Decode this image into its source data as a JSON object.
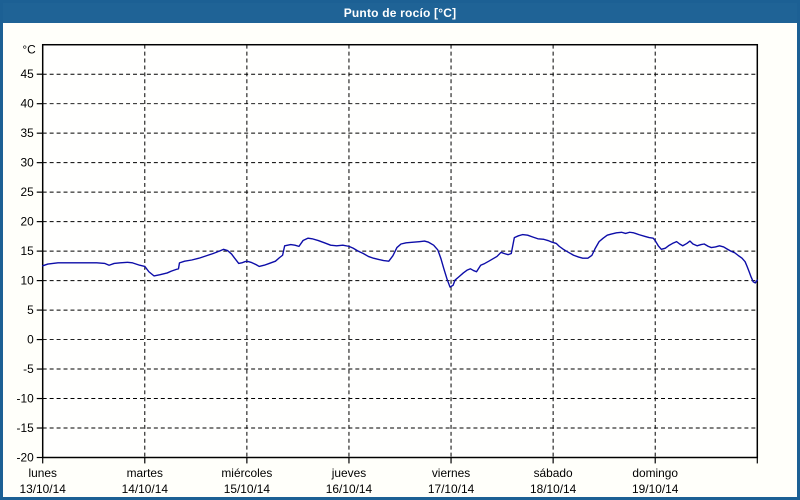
{
  "window": {
    "title": "Punto de rocío [°C]"
  },
  "colors": {
    "titlebar_bg": "#1f6396",
    "window_border": "#1c6094",
    "content_bg": "#fffffa",
    "plot_bg": "#fffffe",
    "grid": "#000000",
    "axis": "#000000",
    "tick_label": "#000000",
    "title_text": "#ffffff",
    "line": "#0d0da8"
  },
  "chart_data": {
    "type": "line",
    "title": "Punto de rocío [°C]",
    "ylabel": "°C",
    "xlabel": "",
    "ylim": [
      -20,
      50
    ],
    "yticks": [
      45,
      40,
      35,
      30,
      25,
      20,
      15,
      10,
      5,
      0,
      -5,
      -10,
      -15,
      -20
    ],
    "grid": "dashed horizontal and vertical (at day boundaries)",
    "legend_position": "none",
    "x_axis_unit": "days",
    "x_categories": [
      {
        "day": "lunes",
        "date": "13/10/14"
      },
      {
        "day": "martes",
        "date": "14/10/14"
      },
      {
        "day": "miércoles",
        "date": "15/10/14"
      },
      {
        "day": "jueves",
        "date": "16/10/14"
      },
      {
        "day": "viernes",
        "date": "17/10/14"
      },
      {
        "day": "sábado",
        "date": "18/10/14"
      },
      {
        "day": "domingo",
        "date": "19/10/14"
      }
    ],
    "series": [
      {
        "name": "Punto de rocío [°C]",
        "color": "#0d0da8",
        "x_unit": "day offset from 13/10/14 00:00",
        "points": [
          [
            0.0,
            12.5
          ],
          [
            0.05,
            12.8
          ],
          [
            0.15,
            13.0
          ],
          [
            0.34,
            13.0
          ],
          [
            0.53,
            13.0
          ],
          [
            0.61,
            12.9
          ],
          [
            0.65,
            12.6
          ],
          [
            0.7,
            12.9
          ],
          [
            0.76,
            13.0
          ],
          [
            0.83,
            13.1
          ],
          [
            0.88,
            13.0
          ],
          [
            0.95,
            12.6
          ],
          [
            1.0,
            12.4
          ],
          [
            1.04,
            11.5
          ],
          [
            1.09,
            10.8
          ],
          [
            1.15,
            11.0
          ],
          [
            1.22,
            11.3
          ],
          [
            1.26,
            11.6
          ],
          [
            1.31,
            11.9
          ],
          [
            1.33,
            12.0
          ],
          [
            1.34,
            13.0
          ],
          [
            1.39,
            13.3
          ],
          [
            1.46,
            13.5
          ],
          [
            1.53,
            13.8
          ],
          [
            1.6,
            14.2
          ],
          [
            1.67,
            14.6
          ],
          [
            1.73,
            15.0
          ],
          [
            1.77,
            15.3
          ],
          [
            1.81,
            15.1
          ],
          [
            1.85,
            14.5
          ],
          [
            1.88,
            13.8
          ],
          [
            1.92,
            12.9
          ],
          [
            1.95,
            13.0
          ],
          [
            1.98,
            13.2
          ],
          [
            2.0,
            13.3
          ],
          [
            2.04,
            13.1
          ],
          [
            2.09,
            12.7
          ],
          [
            2.12,
            12.4
          ],
          [
            2.17,
            12.6
          ],
          [
            2.22,
            12.9
          ],
          [
            2.28,
            13.3
          ],
          [
            2.32,
            13.9
          ],
          [
            2.35,
            14.3
          ],
          [
            2.37,
            15.9
          ],
          [
            2.43,
            16.1
          ],
          [
            2.47,
            16.0
          ],
          [
            2.51,
            15.8
          ],
          [
            2.55,
            16.8
          ],
          [
            2.6,
            17.2
          ],
          [
            2.64,
            17.1
          ],
          [
            2.7,
            16.8
          ],
          [
            2.76,
            16.4
          ],
          [
            2.82,
            16.0
          ],
          [
            2.88,
            15.9
          ],
          [
            2.94,
            16.0
          ],
          [
            3.0,
            15.8
          ],
          [
            3.04,
            15.5
          ],
          [
            3.09,
            15.0
          ],
          [
            3.14,
            14.6
          ],
          [
            3.19,
            14.1
          ],
          [
            3.24,
            13.8
          ],
          [
            3.29,
            13.6
          ],
          [
            3.34,
            13.4
          ],
          [
            3.39,
            13.3
          ],
          [
            3.43,
            14.2
          ],
          [
            3.47,
            15.6
          ],
          [
            3.51,
            16.2
          ],
          [
            3.56,
            16.4
          ],
          [
            3.63,
            16.5
          ],
          [
            3.69,
            16.6
          ],
          [
            3.74,
            16.7
          ],
          [
            3.78,
            16.5
          ],
          [
            3.83,
            16.0
          ],
          [
            3.87,
            15.2
          ],
          [
            3.9,
            13.8
          ],
          [
            3.93,
            12.0
          ],
          [
            3.96,
            10.3
          ],
          [
            3.99,
            8.9
          ],
          [
            4.02,
            9.2
          ],
          [
            4.04,
            10.1
          ],
          [
            4.08,
            10.7
          ],
          [
            4.12,
            11.3
          ],
          [
            4.16,
            11.8
          ],
          [
            4.19,
            12.0
          ],
          [
            4.22,
            11.7
          ],
          [
            4.25,
            11.5
          ],
          [
            4.29,
            12.6
          ],
          [
            4.33,
            12.9
          ],
          [
            4.37,
            13.3
          ],
          [
            4.41,
            13.7
          ],
          [
            4.45,
            14.1
          ],
          [
            4.49,
            14.8
          ],
          [
            4.52,
            14.6
          ],
          [
            4.56,
            14.4
          ],
          [
            4.59,
            14.6
          ],
          [
            4.62,
            17.3
          ],
          [
            4.66,
            17.6
          ],
          [
            4.7,
            17.8
          ],
          [
            4.75,
            17.7
          ],
          [
            4.8,
            17.4
          ],
          [
            4.85,
            17.1
          ],
          [
            4.91,
            17.0
          ],
          [
            4.95,
            16.8
          ],
          [
            4.99,
            16.5
          ],
          [
            5.03,
            16.3
          ],
          [
            5.06,
            15.8
          ],
          [
            5.1,
            15.3
          ],
          [
            5.15,
            14.8
          ],
          [
            5.2,
            14.3
          ],
          [
            5.25,
            14.0
          ],
          [
            5.29,
            13.8
          ],
          [
            5.34,
            13.8
          ],
          [
            5.38,
            14.3
          ],
          [
            5.41,
            15.4
          ],
          [
            5.45,
            16.6
          ],
          [
            5.49,
            17.2
          ],
          [
            5.53,
            17.7
          ],
          [
            5.57,
            17.9
          ],
          [
            5.62,
            18.1
          ],
          [
            5.67,
            18.2
          ],
          [
            5.71,
            18.0
          ],
          [
            5.75,
            18.2
          ],
          [
            5.79,
            18.1
          ],
          [
            5.84,
            17.8
          ],
          [
            5.9,
            17.5
          ],
          [
            5.94,
            17.3
          ],
          [
            5.98,
            17.2
          ],
          [
            6.0,
            16.8
          ],
          [
            6.03,
            15.9
          ],
          [
            6.06,
            15.3
          ],
          [
            6.1,
            15.5
          ],
          [
            6.13,
            15.9
          ],
          [
            6.17,
            16.3
          ],
          [
            6.21,
            16.6
          ],
          [
            6.24,
            16.2
          ],
          [
            6.27,
            15.9
          ],
          [
            6.31,
            16.3
          ],
          [
            6.34,
            16.7
          ],
          [
            6.37,
            16.2
          ],
          [
            6.41,
            15.9
          ],
          [
            6.45,
            16.1
          ],
          [
            6.48,
            16.2
          ],
          [
            6.52,
            15.8
          ],
          [
            6.55,
            15.6
          ],
          [
            6.59,
            15.7
          ],
          [
            6.63,
            15.9
          ],
          [
            6.67,
            15.7
          ],
          [
            6.7,
            15.4
          ],
          [
            6.74,
            15.0
          ],
          [
            6.78,
            14.7
          ],
          [
            6.81,
            14.3
          ],
          [
            6.85,
            13.8
          ],
          [
            6.88,
            13.2
          ],
          [
            6.9,
            12.4
          ],
          [
            6.92,
            11.5
          ],
          [
            6.94,
            10.6
          ],
          [
            6.96,
            9.8
          ],
          [
            6.98,
            9.6
          ],
          [
            7.0,
            10.1
          ]
        ]
      }
    ]
  }
}
